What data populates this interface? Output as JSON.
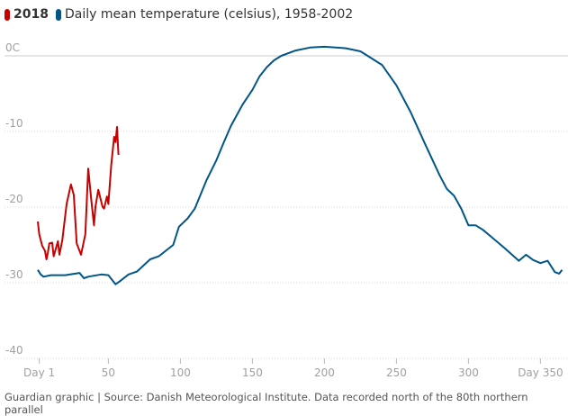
{
  "chart_data": {
    "type": "line",
    "title": "",
    "xlabel": "",
    "ylabel": "",
    "xlim": [
      1,
      365
    ],
    "ylim": [
      -40,
      0
    ],
    "grid": true,
    "legend_position": "top-left",
    "y_ticks": [
      {
        "value": 0,
        "label": "0C"
      },
      {
        "value": -10,
        "label": "-10"
      },
      {
        "value": -20,
        "label": "-20"
      },
      {
        "value": -30,
        "label": "-30"
      },
      {
        "value": -40,
        "label": "-40"
      }
    ],
    "x_ticks": [
      {
        "value": 1,
        "label": "Day 1"
      },
      {
        "value": 50,
        "label": "50"
      },
      {
        "value": 100,
        "label": "100"
      },
      {
        "value": 150,
        "label": "150"
      },
      {
        "value": 200,
        "label": "200"
      },
      {
        "value": 250,
        "label": "250"
      },
      {
        "value": 300,
        "label": "300"
      },
      {
        "value": 350,
        "label": "Day 350"
      }
    ],
    "series": [
      {
        "name": "2018",
        "color": "#c70000",
        "x": [
          1,
          2,
          4,
          6,
          7,
          8,
          9,
          11,
          12,
          15,
          16,
          18,
          21,
          24,
          26,
          28,
          31,
          34,
          36,
          38,
          40,
          41,
          43,
          46,
          47,
          49,
          50,
          52,
          54,
          55,
          56,
          57
        ],
        "y": [
          -21.9,
          -23.6,
          -25.1,
          -25.8,
          -26.9,
          -26.0,
          -24.8,
          -24.7,
          -26.5,
          -24.5,
          -26.3,
          -24.4,
          -19.6,
          -17.0,
          -18.4,
          -24.8,
          -26.3,
          -23.6,
          -14.9,
          -18.8,
          -22.4,
          -20.0,
          -17.7,
          -20.0,
          -20.2,
          -18.6,
          -19.6,
          -14.4,
          -10.7,
          -11.4,
          -9.4,
          -13.1
        ]
      },
      {
        "name": "Daily mean temperature (celsius), 1958-2002",
        "color": "#005689",
        "x": [
          1,
          3,
          5,
          10,
          20,
          30,
          33,
          36,
          45,
          50,
          55,
          58,
          64,
          70,
          79,
          85,
          95,
          99,
          105,
          110,
          118,
          125,
          130,
          135,
          143,
          150,
          155,
          160,
          165,
          170,
          180,
          190,
          200,
          215,
          225,
          230,
          240,
          250,
          260,
          270,
          280,
          285,
          290,
          295,
          300,
          305,
          310,
          315,
          325,
          335,
          340,
          345,
          350,
          355,
          360,
          363,
          365
        ],
        "y": [
          -28.3,
          -28.9,
          -29.2,
          -29.0,
          -29.0,
          -28.7,
          -29.4,
          -29.2,
          -28.9,
          -29.0,
          -30.2,
          -29.8,
          -28.9,
          -28.5,
          -26.9,
          -26.5,
          -25.0,
          -22.6,
          -21.5,
          -20.2,
          -16.5,
          -13.8,
          -11.5,
          -9.3,
          -6.5,
          -4.5,
          -2.7,
          -1.5,
          -0.6,
          0.0,
          0.7,
          1.1,
          1.2,
          1.0,
          0.6,
          0.0,
          -1.2,
          -3.9,
          -7.5,
          -11.7,
          -15.8,
          -17.6,
          -18.5,
          -20.2,
          -22.4,
          -22.4,
          -23.0,
          -23.8,
          -25.4,
          -27.1,
          -26.3,
          -27.0,
          -27.4,
          -27.1,
          -28.6,
          -28.8,
          -28.3
        ]
      }
    ]
  },
  "footer": "Guardian graphic | Source: Danish Meteorological Institute. Data recorded north of the 80th northern parallel"
}
